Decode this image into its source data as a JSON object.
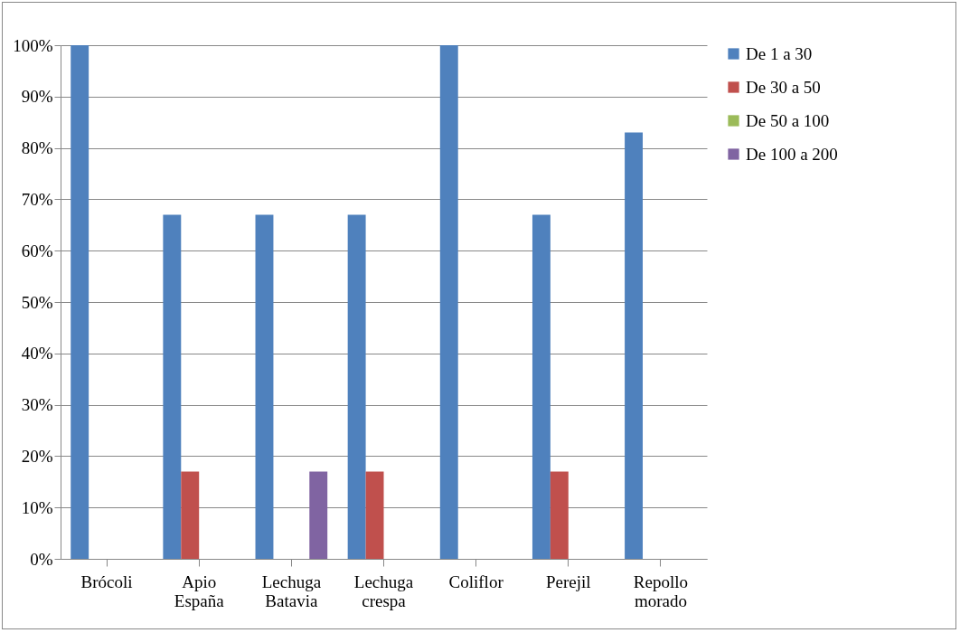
{
  "chart_data": {
    "type": "bar",
    "categories": [
      "Brócoli",
      "Apio España",
      "Lechuga Batavia",
      "Lechuga crespa",
      "Coliflor",
      "Perejil",
      "Repollo morado"
    ],
    "series": [
      {
        "name": "De 1 a 30",
        "color": "#4f81bd",
        "values": [
          100,
          67,
          67,
          67,
          100,
          67,
          83
        ]
      },
      {
        "name": "De 30 a 50",
        "color": "#c0504d",
        "values": [
          0,
          17,
          0,
          17,
          0,
          17,
          0
        ]
      },
      {
        "name": "De 50 a 100",
        "color": "#9bbb59",
        "values": [
          0,
          0,
          0,
          0,
          0,
          0,
          0
        ]
      },
      {
        "name": "De 100 a 200",
        "color": "#8064a2",
        "values": [
          0,
          0,
          17,
          0,
          0,
          0,
          0
        ]
      }
    ],
    "ylim": [
      0,
      100
    ],
    "yticks": [
      {
        "value": 0,
        "label": "0%"
      },
      {
        "value": 10,
        "label": "10%"
      },
      {
        "value": 20,
        "label": "20%"
      },
      {
        "value": 30,
        "label": "30%"
      },
      {
        "value": 40,
        "label": "40%"
      },
      {
        "value": 50,
        "label": "50%"
      },
      {
        "value": 60,
        "label": "60%"
      },
      {
        "value": 70,
        "label": "70%"
      },
      {
        "value": 80,
        "label": "80%"
      },
      {
        "value": 90,
        "label": "90%"
      },
      {
        "value": 100,
        "label": "100%"
      }
    ],
    "grid": "y",
    "legend": "right"
  }
}
